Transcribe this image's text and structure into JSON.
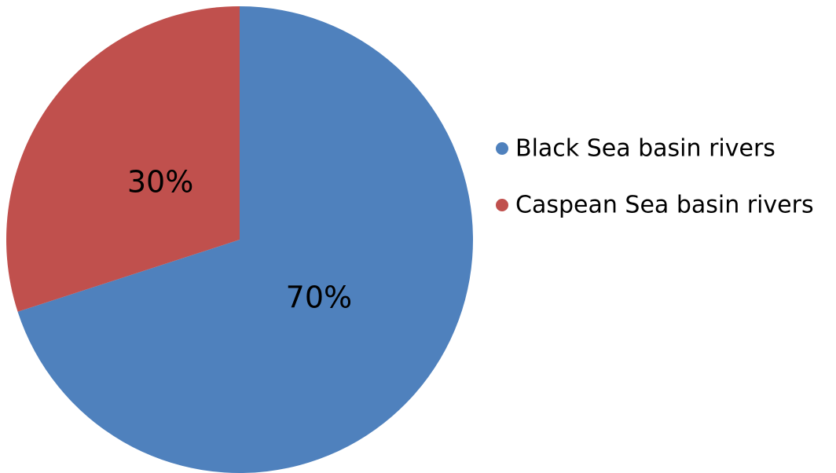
{
  "chart_data": {
    "type": "pie",
    "title": "",
    "slices": [
      {
        "name": "Black Sea basin rivers",
        "value": 70,
        "label": "70%",
        "color": "#4F81BD"
      },
      {
        "name": "Caspean Sea basin rivers",
        "value": 30,
        "label": "30%",
        "color": "#C0504D"
      }
    ],
    "start": "12 o'clock",
    "direction": "clockwise",
    "legend_position": "right"
  }
}
